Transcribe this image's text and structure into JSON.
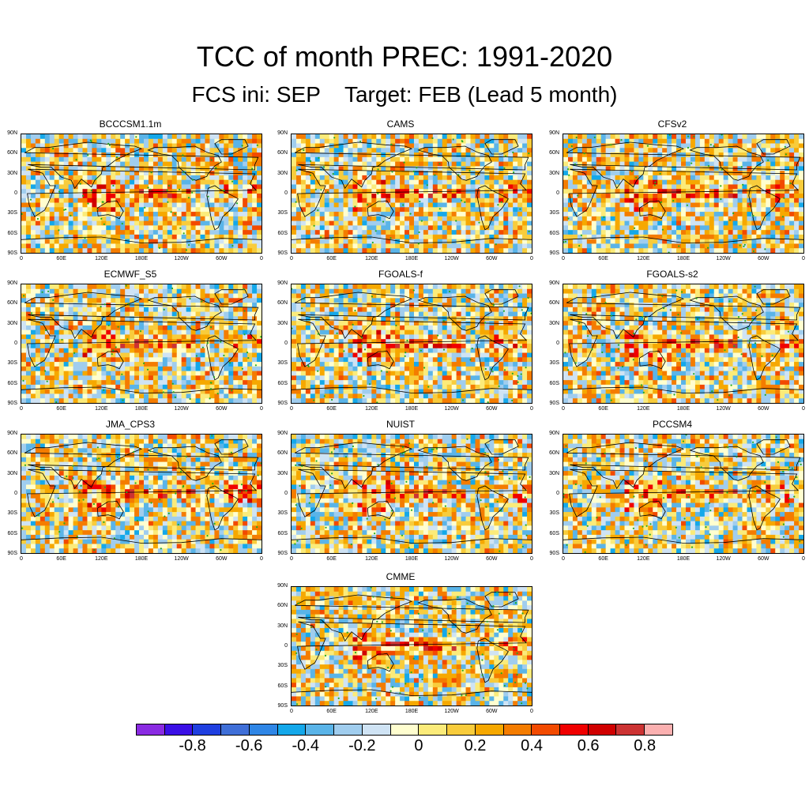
{
  "title": "TCC of month PREC: 1991-2020",
  "subtitle": "FCS ini: SEP    Target: FEB (Lead 5 month)",
  "panels": [
    {
      "name": "BCCCSM1.1m"
    },
    {
      "name": "CAMS"
    },
    {
      "name": "CFSv2"
    },
    {
      "name": "ECMWF_S5"
    },
    {
      "name": "FGOALS-f"
    },
    {
      "name": "FGOALS-s2"
    },
    {
      "name": "JMA_CPS3"
    },
    {
      "name": "NUIST"
    },
    {
      "name": "PCCSM4"
    },
    {
      "name": "CMME"
    }
  ],
  "lat_labels": [
    "90N",
    "60N",
    "30N",
    "0",
    "30S",
    "60S",
    "90S"
  ],
  "lon_labels": [
    "0",
    "60E",
    "120E",
    "180E",
    "120W",
    "60W",
    "0"
  ],
  "colorbar": {
    "labels": [
      "-0.8",
      "-0.6",
      "-0.4",
      "-0.2",
      "0",
      "0.2",
      "0.4",
      "0.6",
      "0.8"
    ],
    "colors": [
      "#8a2be2",
      "#3b10e6",
      "#1f3fe0",
      "#3f6fd8",
      "#2f86e6",
      "#14a8ea",
      "#5ab4e8",
      "#a0cdee",
      "#cfe3f4",
      "#fffecf",
      "#fbeb7a",
      "#f8cc3c",
      "#f6a800",
      "#f47c00",
      "#f24a00",
      "#f00000",
      "#d00000",
      "#cc3333",
      "#fbb0b0"
    ]
  }
}
